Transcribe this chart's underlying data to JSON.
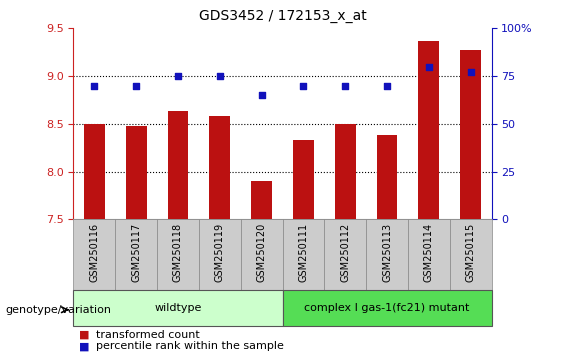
{
  "title": "GDS3452 / 172153_x_at",
  "samples": [
    "GSM250116",
    "GSM250117",
    "GSM250118",
    "GSM250119",
    "GSM250120",
    "GSM250111",
    "GSM250112",
    "GSM250113",
    "GSM250114",
    "GSM250115"
  ],
  "transformed_count": [
    8.5,
    8.48,
    8.63,
    8.58,
    7.9,
    8.33,
    8.5,
    8.38,
    9.37,
    9.27
  ],
  "percentile_rank": [
    70,
    70,
    75,
    75,
    65,
    70,
    70,
    70,
    80,
    77
  ],
  "ylim_left": [
    7.5,
    9.5
  ],
  "ylim_right": [
    0,
    100
  ],
  "yticks_left": [
    7.5,
    8.0,
    8.5,
    9.0,
    9.5
  ],
  "yticks_right": [
    0,
    25,
    50,
    75,
    100
  ],
  "ytick_labels_right": [
    "0",
    "25",
    "50",
    "75",
    "100%"
  ],
  "bar_color": "#BB1111",
  "dot_color": "#1111BB",
  "wildtype_color": "#CCFFCC",
  "mutant_color": "#55DD55",
  "wildtype_label": "wildtype",
  "mutant_label": "complex I gas-1(fc21) mutant",
  "genotype_label": "genotype/variation",
  "legend_bar_label": "transformed count",
  "legend_dot_label": "percentile rank within the sample",
  "wildtype_count": 5,
  "mutant_count": 5,
  "bar_width": 0.5,
  "xlabel_area_bg": "#CCCCCC",
  "dotgrid_color": "#000000"
}
